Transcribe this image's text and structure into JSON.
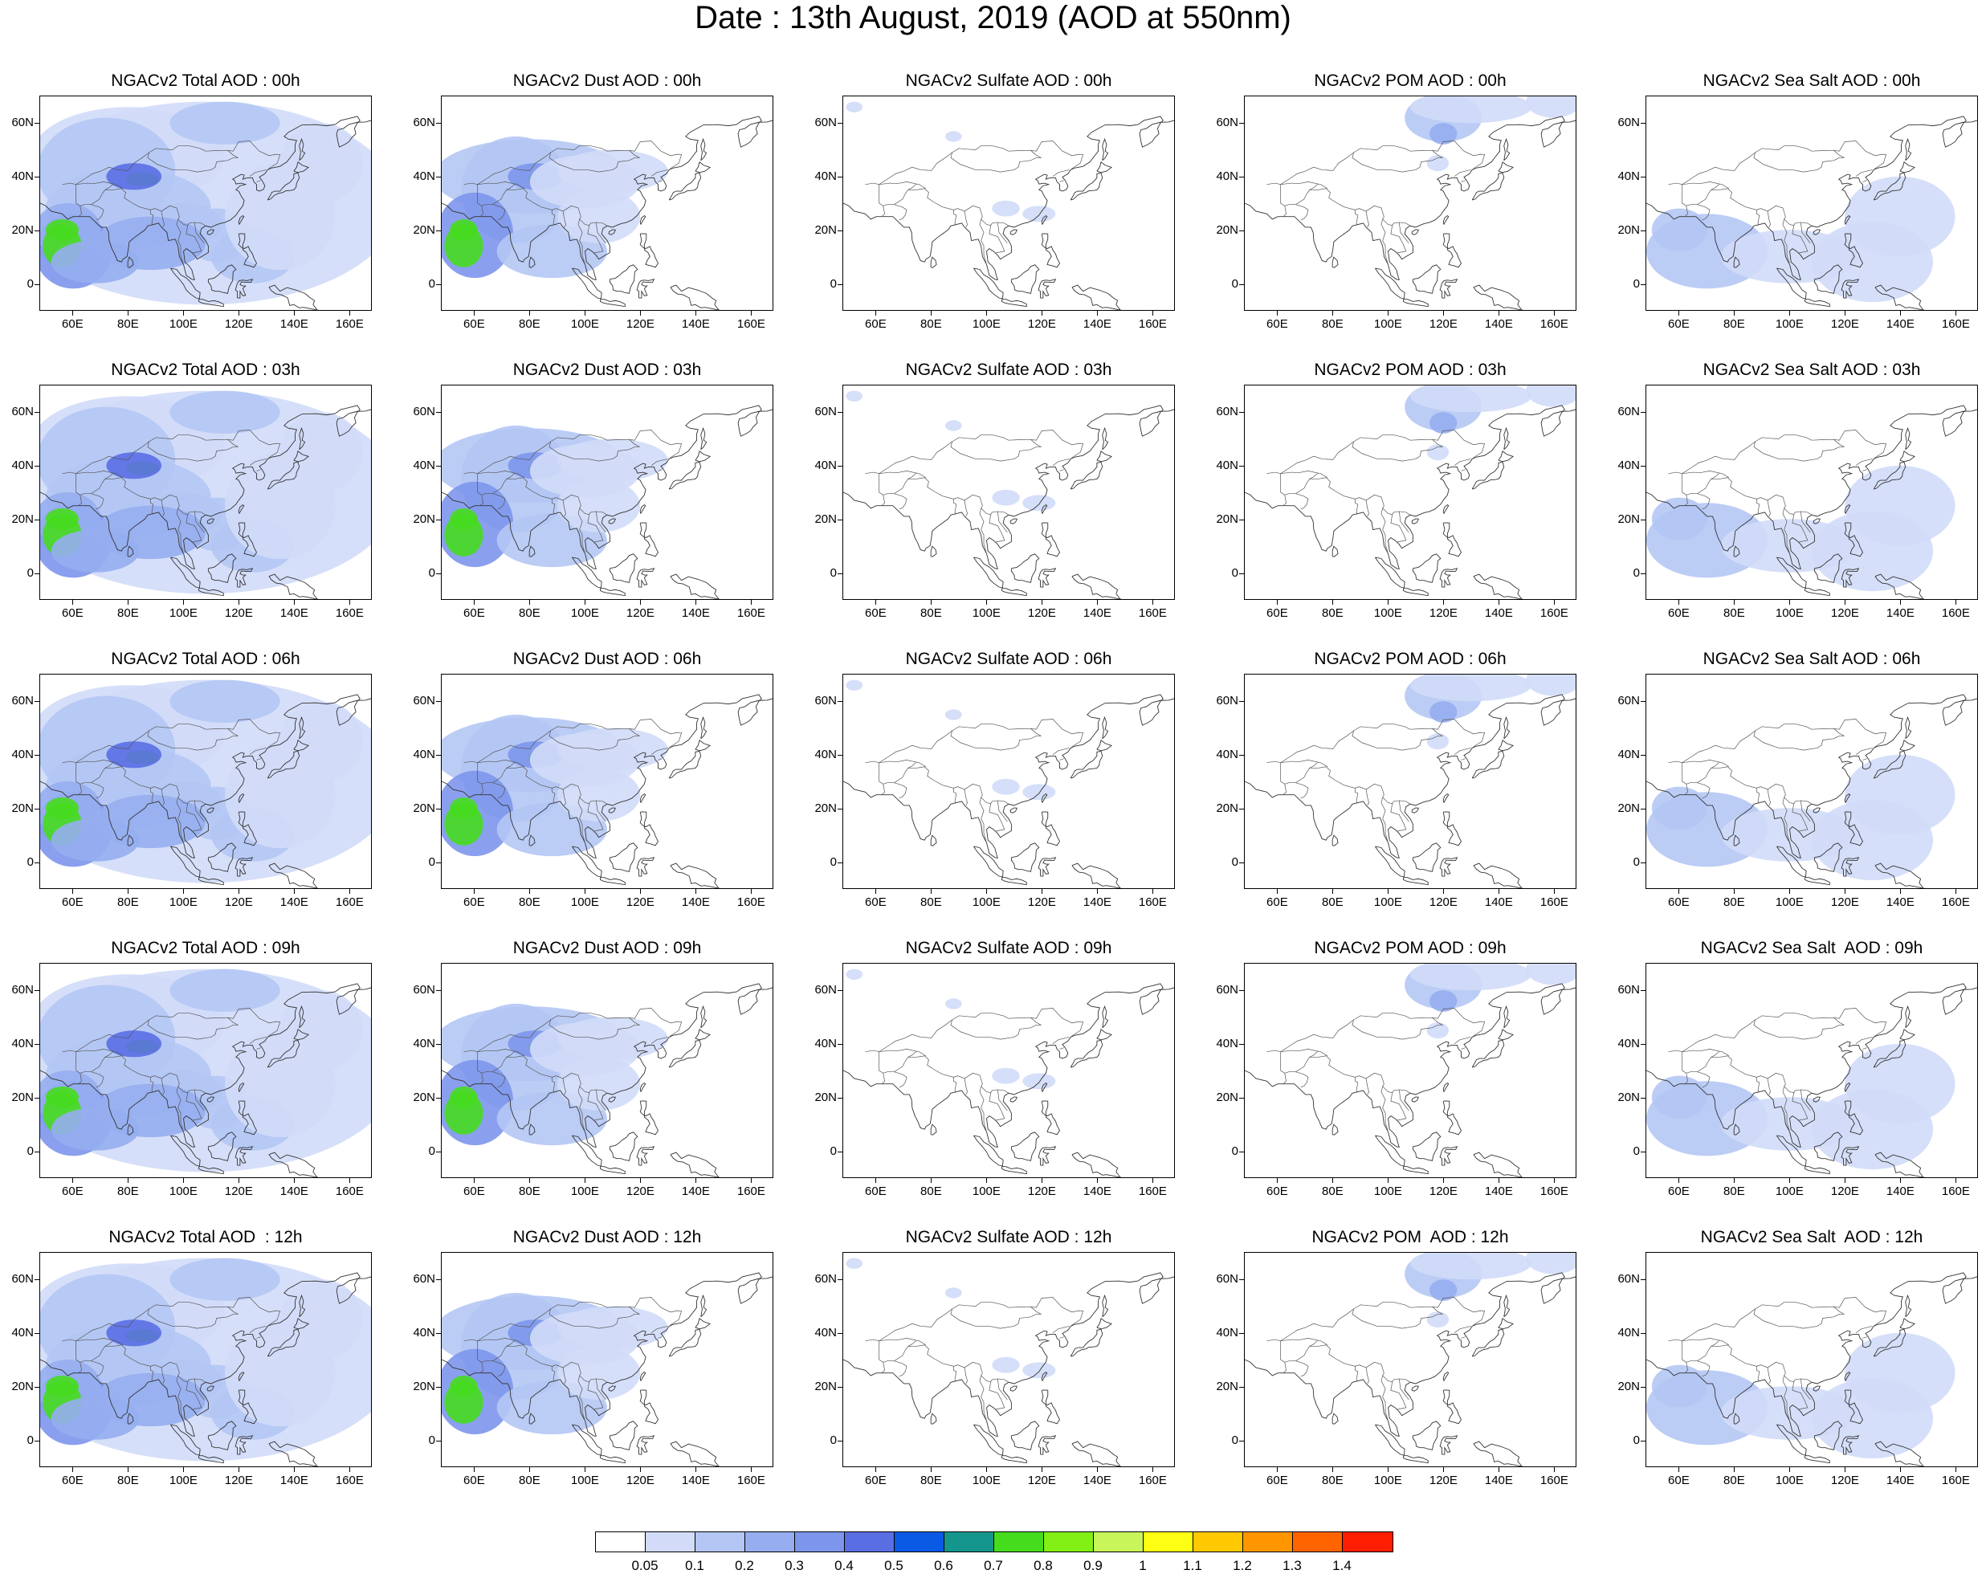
{
  "title": "Date : 13th August, 2019 (AOD at 550nm)",
  "y_labels": [
    "60N",
    "40N",
    "20N",
    "0"
  ],
  "x_labels": [
    "60E",
    "80E",
    "100E",
    "120E",
    "140E",
    "160E"
  ],
  "colorbar": {
    "labels": [
      "0.05",
      "0.1",
      "0.2",
      "0.3",
      "0.4",
      "0.5",
      "0.6",
      "0.7",
      "0.8",
      "0.9",
      "1",
      "1.1",
      "1.2",
      "1.3",
      "1.4"
    ],
    "colors": [
      "#ffffff",
      "#d2dcf8",
      "#b4c6f4",
      "#96aef0",
      "#7d96ec",
      "#5a6ee4",
      "#0a5ae6",
      "#14968c",
      "#46dc1e",
      "#82f014",
      "#c8f55a",
      "#ffff14",
      "#ffc800",
      "#ff9600",
      "#ff6400",
      "#ff1e00"
    ]
  },
  "rows": [
    {
      "hour": "00h",
      "titles": [
        "NGACv2 Total AOD : 00h",
        "NGACv2 Dust AOD : 00h",
        "NGACv2 Sulfate AOD : 00h",
        "NGACv2 POM AOD : 00h",
        "NGACv2 Sea Salt AOD : 00h"
      ]
    },
    {
      "hour": "03h",
      "titles": [
        "NGACv2 Total AOD : 03h",
        "NGACv2 Dust AOD : 03h",
        "NGACv2 Sulfate AOD : 03h",
        "NGACv2 POM AOD : 03h",
        "NGACv2 Sea Salt AOD : 03h"
      ]
    },
    {
      "hour": "06h",
      "titles": [
        "NGACv2 Total AOD : 06h",
        "NGACv2 Dust AOD : 06h",
        "NGACv2 Sulfate AOD : 06h",
        "NGACv2 POM AOD : 06h",
        "NGACv2 Sea Salt AOD : 06h"
      ]
    },
    {
      "hour": "09h",
      "titles": [
        "NGACv2 Total AOD : 09h",
        "NGACv2 Dust AOD : 09h",
        "NGACv2 Sulfate AOD : 09h",
        "NGACv2 POM AOD : 09h",
        "NGACv2 Sea Salt  AOD : 09h"
      ]
    },
    {
      "hour": "12h",
      "titles": [
        "NGACv2 Total AOD  : 12h",
        "NGACv2 Dust AOD : 12h",
        "NGACv2 Sulfate AOD : 12h",
        "NGACv2 POM  AOD : 12h",
        "NGACv2 Sea Salt  AOD : 12h"
      ]
    }
  ],
  "fields": [
    "total",
    "dust",
    "sulfate",
    "pom",
    "seasalt"
  ]
}
